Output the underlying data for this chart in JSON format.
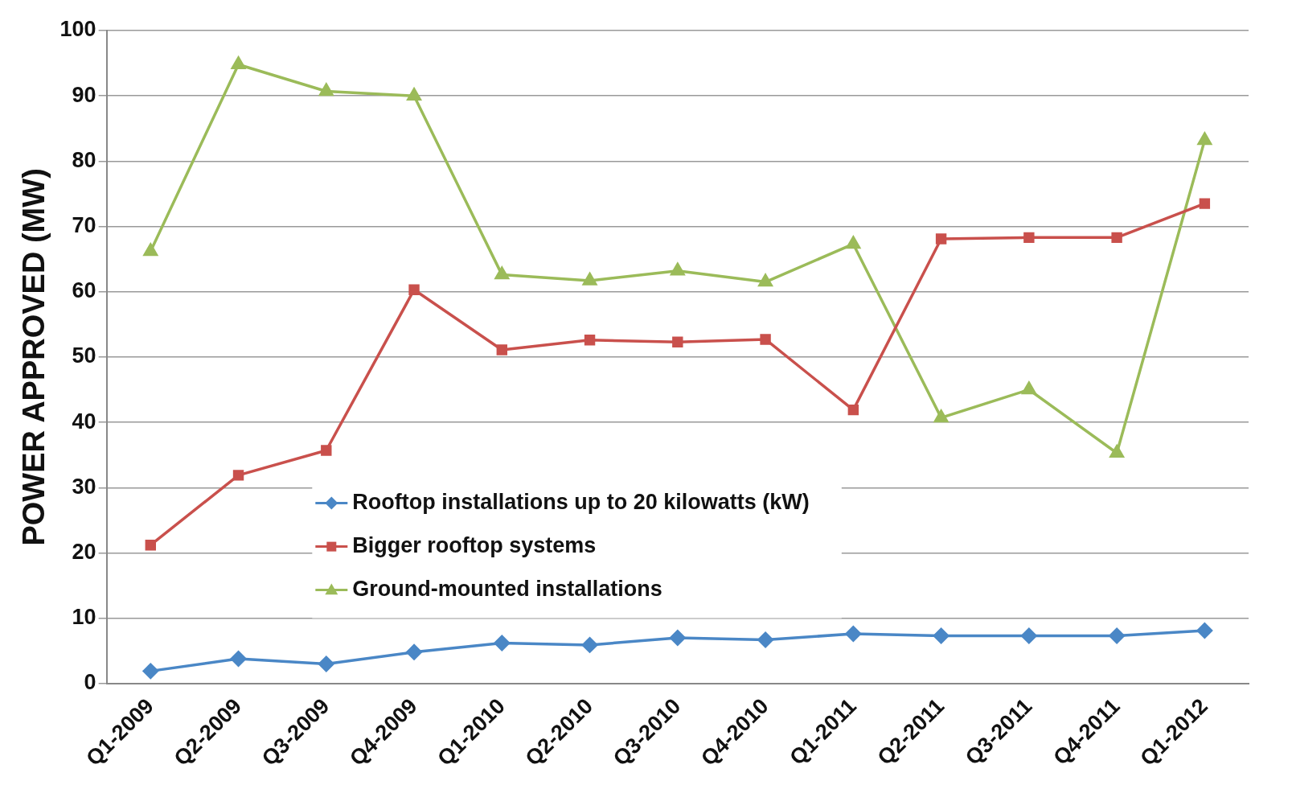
{
  "chart_data": {
    "type": "line",
    "ylabel": "POWER APPROVED (MW)",
    "categories": [
      "Q1-2009",
      "Q2-2009",
      "Q3-2009",
      "Q4-2009",
      "Q1-2010",
      "Q2-2010",
      "Q3-2010",
      "Q4-2010",
      "Q1-2011",
      "Q2-2011",
      "Q3-2011",
      "Q4-2011",
      "Q1-2012"
    ],
    "series": [
      {
        "name": "Rooftop installations up to 20 kilowatts (kW)",
        "color": "#4a87c6",
        "marker": "diamond",
        "values": [
          1.9,
          3.8,
          3.0,
          4.8,
          6.2,
          5.9,
          7.0,
          6.7,
          7.6,
          7.3,
          7.3,
          7.3,
          8.1
        ]
      },
      {
        "name": "Bigger rooftop systems",
        "color": "#c9504c",
        "marker": "square",
        "values": [
          21.2,
          31.9,
          35.7,
          60.3,
          51.1,
          52.6,
          52.3,
          52.7,
          41.9,
          68.1,
          68.3,
          68.3,
          73.5
        ]
      },
      {
        "name": "Ground-mounted installations",
        "color": "#9bbb59",
        "marker": "triangle",
        "values": [
          66.2,
          94.8,
          90.7,
          90,
          62.6,
          61.7,
          63.2,
          61.5,
          67.3,
          40.7,
          45,
          35.3,
          83.2
        ]
      }
    ],
    "ylim": [
      0,
      100
    ],
    "yticks": [
      0,
      10,
      20,
      30,
      40,
      50,
      60,
      70,
      80,
      90,
      100
    ],
    "grid": "y",
    "legend": "bottom",
    "line_style": "solid"
  }
}
